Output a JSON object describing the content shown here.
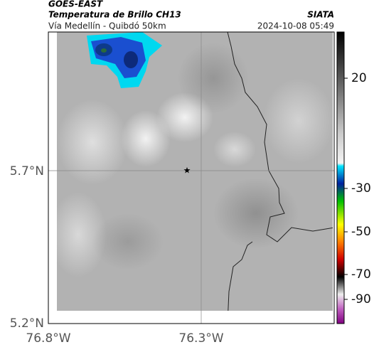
{
  "header": {
    "satellite": "GOES-EAST",
    "product": "Temperatura de Brillo CH13",
    "route": "Vía Medellín - Quibdó 50km",
    "source": "SIATA",
    "timestamp": "2024-10-08 05:49"
  },
  "map": {
    "lat_labels": [
      "5.7°N",
      "5.2°N"
    ],
    "lon_labels": [
      "76.8°W",
      "76.3°W"
    ]
  },
  "colorbar": {
    "labels": [
      "20",
      "-30",
      "-50",
      "-70",
      "-90"
    ]
  }
}
